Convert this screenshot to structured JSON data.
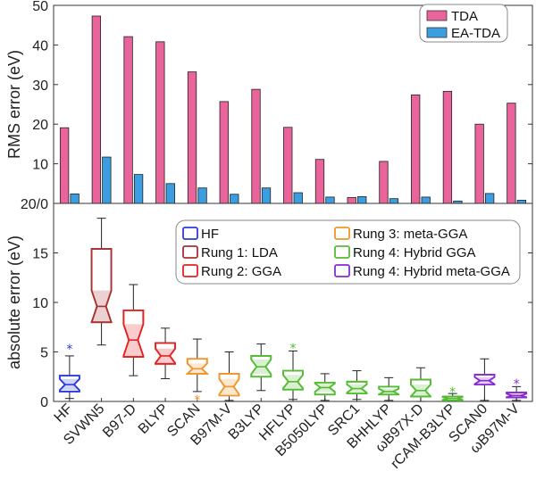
{
  "chart_data": [
    {
      "type": "bar",
      "ylabel": "RMS error (eV)",
      "ylim": [
        0,
        50
      ],
      "yticks": [
        0,
        10,
        20,
        30,
        40,
        50
      ],
      "categories": [
        "HF",
        "SVWN5",
        "B97-D",
        "BLYP",
        "SCAN",
        "B97M-V",
        "B3LYP",
        "HFLYP",
        "B5050LYP",
        "SRC1",
        "BHHLYP",
        "ωB97X-D",
        "rCAM-B3LYP",
        "SCAN0",
        "ωB97M-V"
      ],
      "series": [
        {
          "name": "TDA",
          "color": "#e8649a",
          "values": [
            19.1,
            47.3,
            42.1,
            40.8,
            33.2,
            25.7,
            28.8,
            19.2,
            11.1,
            1.5,
            10.6,
            27.4,
            28.3,
            20.0,
            25.3
          ]
        },
        {
          "name": "EA-TDA",
          "color": "#3a9ee0",
          "values": [
            2.4,
            11.7,
            7.3,
            5.0,
            3.9,
            2.3,
            3.9,
            2.7,
            1.6,
            1.7,
            1.2,
            1.6,
            0.6,
            2.5,
            0.8
          ]
        }
      ],
      "legend": [
        "TDA",
        "EA-TDA"
      ],
      "legend_position": "top-right"
    },
    {
      "type": "box",
      "ylabel": "absolute error (eV)",
      "ylim": [
        0,
        20
      ],
      "yticks": [
        0,
        5,
        10,
        15,
        20
      ],
      "ytick_labels": [
        "0",
        "5",
        "10",
        "15",
        "20/0"
      ],
      "categories": [
        "HF",
        "SVWN5",
        "B97-D",
        "BLYP",
        "SCAN",
        "B97M-V",
        "B3LYP",
        "HFLYP",
        "B5050LYP",
        "SRC1",
        "BHHLYP",
        "ωB97X-D",
        "rCAM-B3LYP",
        "SCAN0",
        "ωB97M-V"
      ],
      "groups": [
        "HF",
        "Rung 1: LDA",
        "Rung 2: GGA",
        "Rung 2: GGA",
        "Rung 3: meta-GGA",
        "Rung 3: meta-GGA",
        "Rung 4: Hybrid GGA",
        "Rung 4: Hybrid GGA",
        "Rung 4: Hybrid GGA",
        "Rung 4: Hybrid GGA",
        "Rung 4: Hybrid GGA",
        "Rung 4: Hybrid GGA",
        "Rung 4: Hybrid GGA",
        "Rung 4: Hybrid meta-GGA",
        "Rung 4: Hybrid meta-GGA"
      ],
      "group_colors": {
        "HF": "#2b3bdf",
        "Rung 1: LDA": "#a63232",
        "Rung 2: GGA": "#e52222",
        "Rung 3: meta-GGA": "#f0952c",
        "Rung 4: Hybrid GGA": "#55bb34",
        "Rung 4: Hybrid meta-GGA": "#8a2bd0"
      },
      "boxes": [
        {
          "whislo": 0.3,
          "q1": 1.0,
          "med": 1.7,
          "q3": 2.6,
          "whishi": 4.6,
          "fliers": [
            5.3
          ]
        },
        {
          "whislo": 5.7,
          "q1": 8.0,
          "med": 9.6,
          "q3": 15.4,
          "whishi": 18.5,
          "fliers": []
        },
        {
          "whislo": 2.6,
          "q1": 4.5,
          "med": 6.2,
          "q3": 9.2,
          "whishi": 11.8,
          "fliers": []
        },
        {
          "whislo": 2.3,
          "q1": 3.8,
          "med": 4.6,
          "q3": 5.9,
          "whishi": 7.4,
          "fliers": []
        },
        {
          "whislo": 1.0,
          "q1": 2.8,
          "med": 3.3,
          "q3": 4.3,
          "whishi": 6.3,
          "fliers": [
            0.2
          ]
        },
        {
          "whislo": 0.1,
          "q1": 0.6,
          "med": 1.5,
          "q3": 2.8,
          "whishi": 5.0,
          "fliers": []
        },
        {
          "whislo": 1.1,
          "q1": 2.5,
          "med": 3.5,
          "q3": 4.6,
          "whishi": 5.8,
          "fliers": []
        },
        {
          "whislo": 0.2,
          "q1": 1.2,
          "med": 2.0,
          "q3": 3.1,
          "whishi": 5.1,
          "fliers": [
            5.4
          ]
        },
        {
          "whislo": 0.1,
          "q1": 0.7,
          "med": 1.4,
          "q3": 1.9,
          "whishi": 2.8,
          "fliers": []
        },
        {
          "whislo": 0.2,
          "q1": 0.8,
          "med": 1.3,
          "q3": 2.0,
          "whishi": 3.1,
          "fliers": []
        },
        {
          "whislo": 0.1,
          "q1": 0.7,
          "med": 1.0,
          "q3": 1.5,
          "whishi": 2.4,
          "fliers": []
        },
        {
          "whislo": 0.0,
          "q1": 0.5,
          "med": 1.1,
          "q3": 2.2,
          "whishi": 3.4,
          "fliers": []
        },
        {
          "whislo": 0.0,
          "q1": 0.1,
          "med": 0.3,
          "q3": 0.5,
          "whishi": 0.8,
          "fliers": [
            1.0
          ]
        },
        {
          "whislo": 0.1,
          "q1": 1.7,
          "med": 2.1,
          "q3": 2.7,
          "whishi": 4.3,
          "fliers": []
        },
        {
          "whislo": 0.1,
          "q1": 0.4,
          "med": 0.6,
          "q3": 0.9,
          "whishi": 1.5,
          "fliers": [
            1.8
          ]
        }
      ],
      "legend": [
        "HF",
        "Rung 1: LDA",
        "Rung 2: GGA",
        "Rung 3: meta-GGA",
        "Rung 4: Hybrid GGA",
        "Rung 4: Hybrid meta-GGA"
      ],
      "legend_position": "top-right"
    }
  ]
}
